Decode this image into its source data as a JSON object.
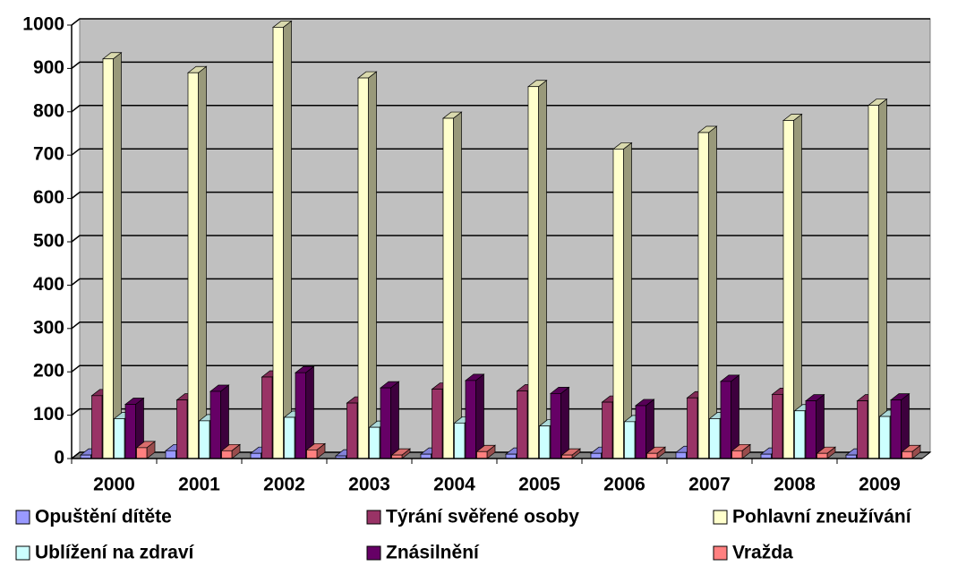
{
  "chart_data": {
    "type": "bar",
    "categories": [
      "2000",
      "2001",
      "2002",
      "2003",
      "2004",
      "2005",
      "2006",
      "2007",
      "2008",
      "2009"
    ],
    "series": [
      {
        "name": "Opuštění dítěte",
        "color": "#9999ff",
        "values": [
          8,
          18,
          12,
          6,
          10,
          10,
          12,
          14,
          10,
          8
        ]
      },
      {
        "name": "Týrání svěřené osoby",
        "color": "#993366",
        "values": [
          145,
          135,
          188,
          128,
          160,
          156,
          130,
          140,
          148,
          133
        ]
      },
      {
        "name": "Pohlavní zneužívání",
        "color": "#ffffcc",
        "values": [
          922,
          890,
          995,
          878,
          785,
          858,
          714,
          752,
          780,
          815
        ]
      },
      {
        "name": "Ublížení na zdraví",
        "color": "#ccffff",
        "values": [
          92,
          87,
          95,
          72,
          82,
          75,
          85,
          92,
          110,
          97
        ]
      },
      {
        "name": "Znásilnění",
        "color": "#660066",
        "values": [
          125,
          155,
          198,
          163,
          180,
          150,
          122,
          178,
          133,
          135
        ]
      },
      {
        "name": "Vražda",
        "color": "#ff8080",
        "values": [
          25,
          18,
          20,
          8,
          16,
          8,
          12,
          18,
          12,
          16
        ]
      }
    ],
    "ylim": [
      0,
      1000
    ],
    "yticks": [
      0,
      100,
      200,
      300,
      400,
      500,
      600,
      700,
      800,
      900,
      1000
    ],
    "grid": true,
    "legend": "bottom"
  }
}
